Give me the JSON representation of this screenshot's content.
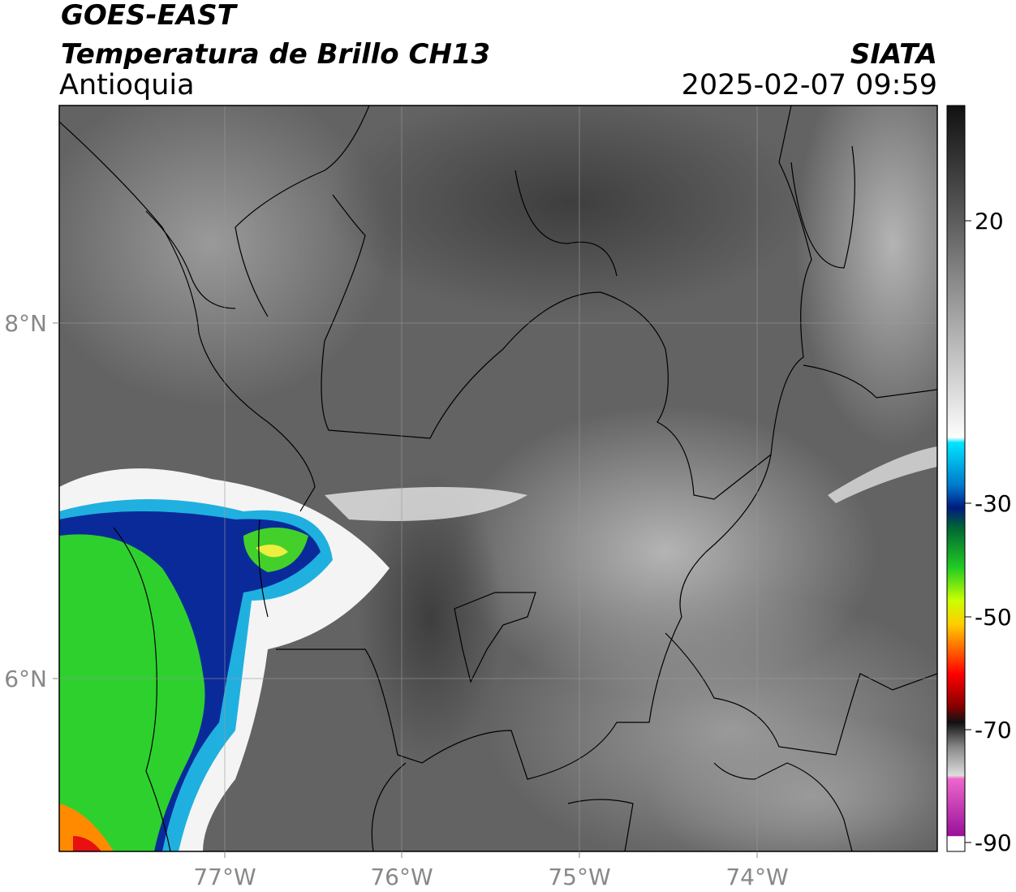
{
  "header": {
    "title": "GOES-EAST",
    "subtitle": "Temperatura de Brillo CH13",
    "region": "Antioquia",
    "source": "SIATA",
    "datetime": "2025-02-07 09:59"
  },
  "map": {
    "lon_ticks": [
      "77°W",
      "76°W",
      "75°W",
      "74°W"
    ],
    "lat_ticks": [
      "8°N",
      "6°N"
    ]
  },
  "colorbar": {
    "ticks": [
      20,
      -30,
      -50,
      -70,
      -90
    ]
  }
}
